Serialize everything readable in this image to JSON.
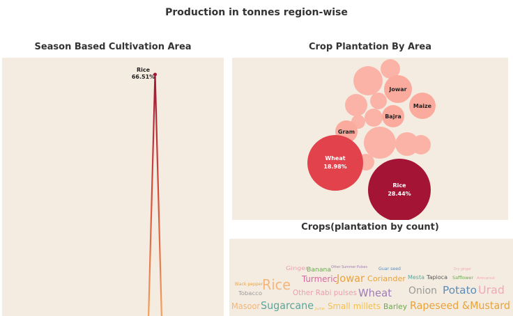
{
  "page_title": "Production in tonnes region-wise",
  "colors": {
    "panel_bg": "#f5ece1",
    "dark_red": "#a41535",
    "red": "#e1424c",
    "salmon": "#fbaa9e",
    "orange": "#f4a35d"
  },
  "chart_data": [
    {
      "type": "line",
      "title": "Season Based Cultivation Area",
      "series": [
        {
          "name": "Rice",
          "points": [
            {
              "label": "",
              "value": 0
            },
            {
              "label": "Rice",
              "value": 66.51,
              "display": "66.51%"
            },
            {
              "label": "",
              "value": 0
            }
          ]
        }
      ],
      "grid": false,
      "legend": "none"
    },
    {
      "type": "bubble",
      "title": "Crop Plantation By Area",
      "bubbles": [
        {
          "label": "Rice",
          "value": 28.44,
          "display": "28.44%",
          "color": "#a41535"
        },
        {
          "label": "Wheat",
          "value": 18.98,
          "display": "18.98%",
          "color": "#e1424c"
        },
        {
          "label": "Gram",
          "value": null,
          "color": "#fbaa9e"
        },
        {
          "label": "Bajra",
          "value": null,
          "color": "#fbaa9e"
        },
        {
          "label": "Jowar",
          "value": null,
          "color": "#fbaa9e"
        },
        {
          "label": "Maize",
          "value": null,
          "color": "#fbaa9e"
        },
        {
          "label": "",
          "value": null,
          "color": "#fbb3a7"
        },
        {
          "label": "",
          "value": null,
          "color": "#fbb3a7"
        },
        {
          "label": "",
          "value": null,
          "color": "#fbb3a7"
        },
        {
          "label": "",
          "value": null,
          "color": "#fbb3a7"
        },
        {
          "label": "",
          "value": null,
          "color": "#fbb3a7"
        },
        {
          "label": "",
          "value": null,
          "color": "#fbb3a7"
        },
        {
          "label": "",
          "value": null,
          "color": "#fbb3a7"
        },
        {
          "label": "",
          "value": null,
          "color": "#fbb3a7"
        },
        {
          "label": "",
          "value": null,
          "color": "#fbb3a7"
        },
        {
          "label": "",
          "value": null,
          "color": "#fbb3a7"
        }
      ]
    },
    {
      "type": "wordcloud",
      "title": "Crops(plantation by count)",
      "words": [
        {
          "text": "Ginger",
          "color": "#e9a0b0"
        },
        {
          "text": "Banana",
          "color": "#6aa84f"
        },
        {
          "text": "Other Summer Pulses",
          "color": "#9e7bb5"
        },
        {
          "text": "Guar seed",
          "color": "#5b8db8"
        },
        {
          "text": "Dry ginger",
          "color": "#f2a8b8"
        },
        {
          "text": "Turmeric",
          "color": "#d46a9e"
        },
        {
          "text": "Jowar",
          "color": "#e8a33c"
        },
        {
          "text": "Coriander",
          "color": "#e8a33c"
        },
        {
          "text": "Mesta",
          "color": "#5aa59a"
        },
        {
          "text": "Tapioca",
          "color": "#555555"
        },
        {
          "text": "Safflower",
          "color": "#6aa84f"
        },
        {
          "text": "Arecanut",
          "color": "#f2a8b8"
        },
        {
          "text": "Black pepper",
          "color": "#e8a33c"
        },
        {
          "text": "Rice",
          "color": "#f4b57a"
        },
        {
          "text": "Tobacco",
          "color": "#999999"
        },
        {
          "text": "Other Rabi pulses",
          "color": "#e9a0b0"
        },
        {
          "text": "Wheat",
          "color": "#9e7bb5"
        },
        {
          "text": "Onion",
          "color": "#999999"
        },
        {
          "text": "Potato",
          "color": "#5b8db8"
        },
        {
          "text": "Urad",
          "color": "#f2a8b8"
        },
        {
          "text": "Masoor",
          "color": "#f4b57a"
        },
        {
          "text": "Sugarcane",
          "color": "#5aa59a"
        },
        {
          "text": "Jute",
          "color": "#f2c14e"
        },
        {
          "text": "Small millets",
          "color": "#f2c14e"
        },
        {
          "text": "Barley",
          "color": "#6aa84f"
        },
        {
          "text": "Rapeseed &Mustard",
          "color": "#e8a33c"
        }
      ]
    }
  ]
}
